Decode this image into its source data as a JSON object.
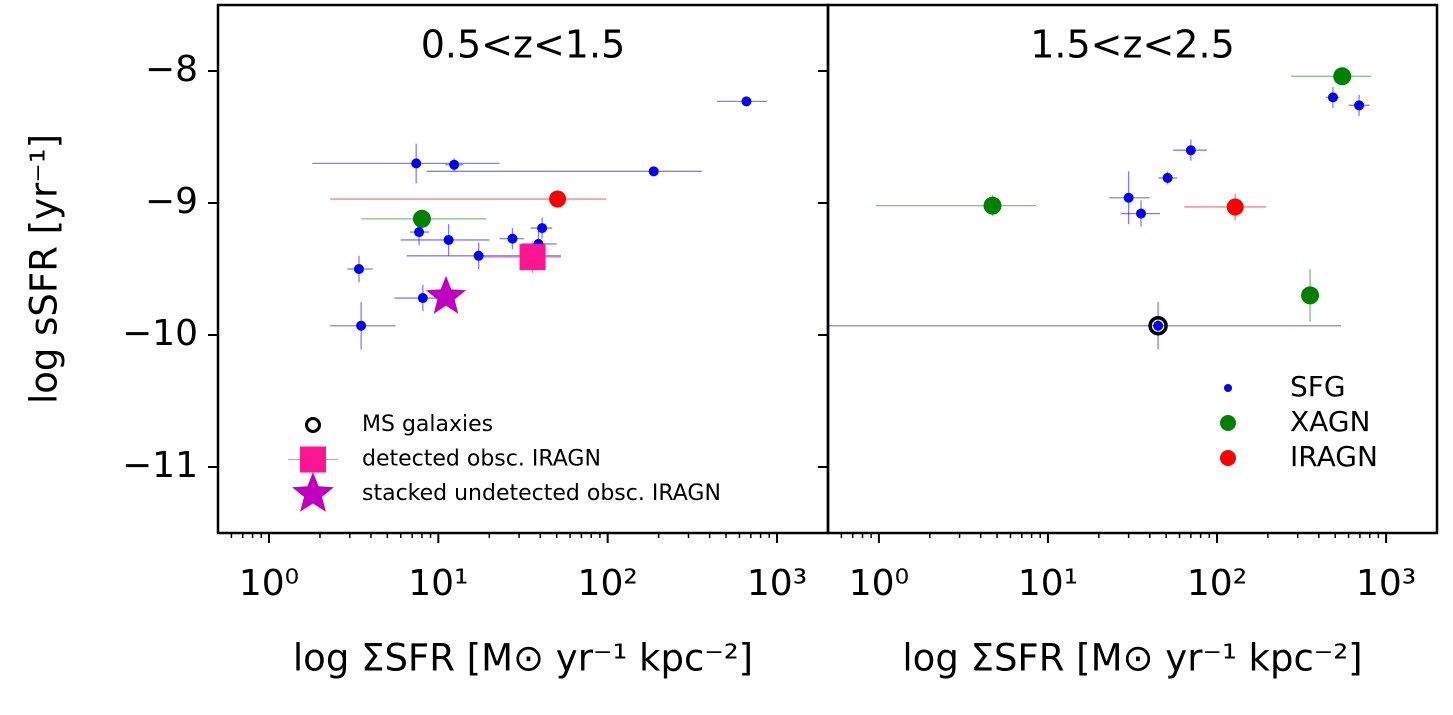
{
  "chart_data": [
    {
      "type": "scatter",
      "title": "0.5<z<1.5",
      "xlabel": "log ΣSFR [M⊙ yr⁻¹ kpc⁻²]",
      "ylabel": "log sSFR [yr⁻¹]",
      "xscale": "log",
      "xlim": [
        0.5,
        2000
      ],
      "ylim": [
        -11.5,
        -7.5
      ],
      "xticks": [
        {
          "value": 1,
          "label": "10⁰"
        },
        {
          "value": 10,
          "label": "10¹"
        },
        {
          "value": 100,
          "label": "10²"
        },
        {
          "value": 1000,
          "label": "10³"
        }
      ],
      "yticks": [
        {
          "value": -8,
          "label": "−8"
        },
        {
          "value": -9,
          "label": "−9"
        },
        {
          "value": -10,
          "label": "−10"
        },
        {
          "value": -11,
          "label": "−11"
        }
      ],
      "show_ytick_labels": true,
      "legend_position": "lower left",
      "series": [
        {
          "name": "SFG",
          "color": "#0000ff",
          "marker": "circle",
          "in_legend": false,
          "x": [
            660,
            7.4,
            12.4,
            187,
            7.7,
            11.5,
            3.4,
            17.3,
            27.4,
            39,
            41,
            8.1,
            3.5
          ],
          "values": [
            -8.23,
            -8.7,
            -8.71,
            -8.76,
            -9.22,
            -9.28,
            -9.5,
            -9.4,
            -9.27,
            -9.31,
            -9.19,
            -9.72,
            -9.93
          ],
          "xlo": [
            442,
            1.8,
            11,
            8.5,
            6.8,
            6,
            2.9,
            6.5,
            23,
            31,
            35,
            5.5,
            2.3
          ],
          "xhi": [
            875,
            23,
            14,
            360,
            8.8,
            20,
            4.1,
            53,
            32,
            50,
            47,
            11.9,
            5.6
          ],
          "yerr": [
            0.02,
            0.15,
            0.05,
            0.02,
            0.1,
            0.12,
            0.1,
            0.1,
            0.08,
            0.1,
            0.08,
            0.1,
            0.18
          ]
        },
        {
          "name": "XAGN",
          "color": "#008000",
          "marker": "circle",
          "in_legend": false,
          "x": [
            8.0
          ],
          "values": [
            -9.12
          ],
          "xlo": [
            3.5
          ],
          "xhi": [
            19.2
          ],
          "yerr": [
            0.07
          ]
        },
        {
          "name": "IRAGN",
          "color": "#ff0000",
          "marker": "circle",
          "in_legend": false,
          "x": [
            50.6
          ],
          "values": [
            -8.97
          ],
          "xlo": [
            2.3
          ],
          "xhi": [
            98
          ],
          "yerr": [
            0.02
          ]
        },
        {
          "name": "MS galaxies",
          "color": "#000000",
          "marker": "ring",
          "in_legend": true,
          "x": [],
          "values": [],
          "xlo": [],
          "xhi": [],
          "yerr": []
        },
        {
          "name": "detected obsc. IRAGN",
          "color": "#ff1493",
          "marker": "square",
          "in_legend": true,
          "x": [
            36
          ],
          "values": [
            -9.41
          ],
          "xlo": [
            18
          ],
          "xhi": [
            53
          ],
          "yerr": [
            0.12
          ]
        },
        {
          "name": "stacked undetected obsc. IRAGN",
          "color": "#bf00bf",
          "marker": "star",
          "in_legend": true,
          "x": [
            11.1
          ],
          "values": [
            -9.71
          ],
          "xlo": [
            11.1
          ],
          "xhi": [
            11.1
          ],
          "yerr": [
            0.05
          ]
        }
      ]
    },
    {
      "type": "scatter",
      "title": "1.5<z<2.5",
      "xlabel": "log ΣSFR [M⊙ yr⁻¹ kpc⁻²]",
      "xscale": "log",
      "xlim": [
        0.5,
        2000
      ],
      "ylim": [
        -11.5,
        -7.5
      ],
      "xticks": [
        {
          "value": 1,
          "label": "10⁰"
        },
        {
          "value": 10,
          "label": "10¹"
        },
        {
          "value": 100,
          "label": "10²"
        },
        {
          "value": 1000,
          "label": "10³"
        }
      ],
      "yticks": [
        -8,
        -9,
        -10,
        -11
      ],
      "show_ytick_labels": false,
      "legend_position": "lower right",
      "series": [
        {
          "name": "SFG",
          "color": "#0000ff",
          "marker": "circle",
          "in_legend": true,
          "x": [
            485,
            692,
            70,
            51,
            30,
            35.5,
            44.8
          ],
          "values": [
            -8.2,
            -8.26,
            -8.6,
            -8.81,
            -8.96,
            -9.08,
            -9.93
          ],
          "xlo": [
            440,
            600,
            55,
            45,
            23,
            27,
            0.3
          ],
          "xhi": [
            530,
            800,
            87,
            58,
            40,
            46,
            542
          ],
          "yerr": [
            0.08,
            0.08,
            0.08,
            0.05,
            0.2,
            0.1,
            0.18
          ]
        },
        {
          "name": "XAGN",
          "color": "#008000",
          "marker": "circle",
          "in_legend": true,
          "x": [
            550,
            4.7,
            355
          ],
          "values": [
            -8.04,
            -9.02,
            -9.7
          ],
          "xlo": [
            274,
            0.96,
            340
          ],
          "xhi": [
            815,
            8.5,
            370
          ],
          "yerr": [
            0.02,
            0.08,
            0.2
          ]
        },
        {
          "name": "IRAGN",
          "color": "#ff0000",
          "marker": "circle",
          "in_legend": true,
          "x": [
            128
          ],
          "values": [
            -9.03
          ],
          "xlo": [
            64
          ],
          "xhi": [
            195
          ],
          "yerr": [
            0.1
          ]
        },
        {
          "name": "MS galaxies",
          "color": "#000000",
          "marker": "ring",
          "in_legend": false,
          "x": [
            44.8
          ],
          "values": [
            -9.93
          ],
          "xlo": [
            44.8
          ],
          "xhi": [
            44.8
          ],
          "yerr": [
            0
          ]
        }
      ]
    }
  ]
}
